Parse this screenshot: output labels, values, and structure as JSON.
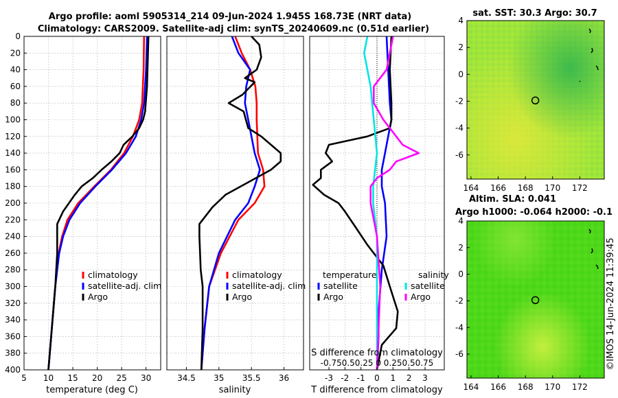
{
  "header": {
    "title_line1": "Argo profile: aoml 5905314_214 09-Jun-2024 1.945S 168.73E (NRT data)",
    "title_line2": "Climatology: CARS2009. Satellite-adj clim: synTS_20240609.nc (0.51d earlier)"
  },
  "copyright": "©IMOS 14-Jun-2024 11:39:45",
  "colors": {
    "climatology": "#ff0000",
    "satellite": "#0000ff",
    "argo": "#000000",
    "sat_diff_T": "#00e5e5",
    "argo_diff_S": "#ff00ff"
  },
  "chart_data": [
    {
      "type": "line",
      "id": "temperature",
      "xlabel": "temperature (deg C)",
      "ylabel": "",
      "xlim": [
        5,
        33
      ],
      "ylim": [
        400,
        0
      ],
      "xticks": [
        "5",
        "10",
        "15",
        "20",
        "25",
        "30"
      ],
      "yticks": [
        "0",
        "20",
        "40",
        "60",
        "80",
        "100",
        "120",
        "140",
        "160",
        "180",
        "200",
        "220",
        "240",
        "260",
        "280",
        "300",
        "320",
        "340",
        "360",
        "380",
        "400"
      ],
      "legend": [
        "climatology",
        "satellite-adj. clim",
        "Argo"
      ],
      "series": [
        {
          "name": "climatology",
          "color": "#ff0000",
          "depth": [
            0,
            40,
            80,
            100,
            120,
            140,
            160,
            180,
            200,
            220,
            240,
            260,
            300,
            350,
            400
          ],
          "values": [
            29.6,
            29.5,
            29.2,
            28.6,
            27.3,
            25.5,
            22.8,
            19.4,
            16.1,
            13.9,
            12.8,
            12.1,
            11.4,
            10.7,
            10.0
          ]
        },
        {
          "name": "satellite-adj. clim",
          "color": "#0000ff",
          "depth": [
            0,
            40,
            80,
            100,
            120,
            140,
            160,
            180,
            200,
            220,
            240,
            260,
            300,
            350,
            400
          ],
          "values": [
            30.2,
            30.0,
            29.6,
            29.0,
            27.9,
            25.9,
            23.0,
            19.6,
            16.5,
            14.3,
            13.0,
            12.2,
            11.4,
            10.7,
            10.0
          ]
        },
        {
          "name": "Argo",
          "color": "#000000",
          "depth": [
            0,
            20,
            60,
            90,
            100,
            110,
            120,
            130,
            140,
            150,
            160,
            170,
            180,
            190,
            200,
            210,
            220,
            225,
            240,
            260,
            300,
            350,
            400
          ],
          "values": [
            30.5,
            30.4,
            30.2,
            29.8,
            29.4,
            28.6,
            27.2,
            25.4,
            24.6,
            22.9,
            20.9,
            19.1,
            16.8,
            15.4,
            14.2,
            13.0,
            12.2,
            11.8,
            11.8,
            11.8,
            11.4,
            10.7,
            10.0
          ]
        }
      ]
    },
    {
      "type": "line",
      "id": "salinity",
      "xlabel": "salinity",
      "xlim": [
        34.2,
        36.3
      ],
      "ylim": [
        400,
        0
      ],
      "xticks": [
        "34.5",
        "35",
        "35.5",
        "36"
      ],
      "legend": [
        "climatology",
        "satellite-adj. clim",
        "Argo"
      ],
      "series": [
        {
          "name": "climatology",
          "color": "#ff0000",
          "depth": [
            0,
            20,
            40,
            60,
            80,
            100,
            140,
            160,
            180,
            200,
            220,
            260,
            300,
            350,
            400
          ],
          "values": [
            35.25,
            35.35,
            35.48,
            35.56,
            35.58,
            35.58,
            35.6,
            35.68,
            35.7,
            35.55,
            35.3,
            35.03,
            34.85,
            34.78,
            34.73
          ]
        },
        {
          "name": "satellite-adj. clim",
          "color": "#0000ff",
          "depth": [
            0,
            20,
            40,
            60,
            80,
            100,
            140,
            160,
            180,
            200,
            220,
            260,
            300,
            350,
            400
          ],
          "values": [
            35.2,
            35.3,
            35.48,
            35.42,
            35.4,
            35.45,
            35.55,
            35.63,
            35.55,
            35.45,
            35.25,
            35.0,
            34.85,
            34.78,
            34.73
          ]
        },
        {
          "name": "Argo",
          "color": "#000000",
          "depth": [
            0,
            10,
            25,
            40,
            50,
            55,
            70,
            80,
            90,
            110,
            120,
            140,
            150,
            160,
            175,
            190,
            205,
            225,
            240,
            280,
            300,
            350,
            400
          ],
          "values": [
            35.5,
            35.62,
            35.65,
            35.58,
            35.4,
            35.55,
            35.36,
            35.15,
            35.38,
            35.45,
            35.65,
            35.95,
            35.95,
            35.8,
            35.45,
            35.1,
            34.9,
            34.7,
            34.7,
            34.72,
            34.75,
            34.75,
            34.73
          ]
        }
      ]
    },
    {
      "type": "line",
      "id": "difference",
      "xlabel": "T difference from climatology",
      "secondary_xlabel": "S difference from climatology",
      "xlim": [
        -4.2,
        4.2
      ],
      "ylim": [
        400,
        0
      ],
      "xticks": [
        "-3",
        "-2",
        "-1",
        "0",
        "1",
        "2",
        "3"
      ],
      "secondary_xticks": "-0.750.50.25 0 0.250.50.75",
      "legend_temperature": {
        "title": "temperature",
        "items": [
          "satellite",
          "Argo"
        ]
      },
      "legend_salinity": {
        "title": "salinity",
        "items": [
          "satellite",
          "Argo"
        ]
      },
      "series": [
        {
          "name": "satellite T diff",
          "color": "#0000ff",
          "depth": [
            0,
            40,
            80,
            100,
            120,
            140,
            160,
            180,
            200,
            240,
            280,
            330,
            360,
            400
          ],
          "values": [
            0.6,
            0.7,
            0.8,
            0.9,
            0.7,
            0.5,
            0.3,
            0.3,
            0.5,
            0.6,
            0.3,
            0.1,
            0.1,
            0.0
          ]
        },
        {
          "name": "Argo T diff",
          "color": "#000000",
          "depth": [
            0,
            40,
            80,
            100,
            110,
            120,
            130,
            140,
            150,
            160,
            170,
            178,
            190,
            200,
            210,
            230,
            250,
            275,
            300,
            330,
            350,
            370,
            400
          ],
          "values": [
            0.9,
            0.8,
            0.9,
            0.9,
            0.8,
            -0.6,
            -3.0,
            -3.2,
            -2.8,
            -3.5,
            -3.5,
            -4.0,
            -3.3,
            -2.4,
            -2.0,
            -1.3,
            -0.6,
            0.4,
            0.8,
            1.3,
            1.2,
            0.3,
            0.0
          ]
        },
        {
          "name": "satellite S diff",
          "color": "#00e5e5",
          "depth": [
            0,
            20,
            60,
            100,
            140,
            160,
            180,
            200,
            240,
            300,
            400
          ],
          "values": [
            -0.15,
            -0.2,
            -0.1,
            -0.05,
            0.0,
            -0.03,
            -0.06,
            -0.06,
            0.0,
            0.0,
            0.0
          ]
        },
        {
          "name": "Argo S diff",
          "color": "#ff00ff",
          "depth": [
            0,
            20,
            40,
            60,
            80,
            100,
            120,
            130,
            140,
            150,
            160,
            170,
            180,
            200,
            240,
            300,
            400
          ],
          "values": [
            0.25,
            0.2,
            0.15,
            -0.05,
            -0.05,
            0.1,
            0.3,
            0.4,
            0.65,
            0.3,
            0.2,
            0.0,
            -0.1,
            -0.1,
            0.0,
            0.05,
            0.0
          ]
        }
      ]
    }
  ],
  "maps": [
    {
      "id": "sst-map",
      "title": "sat. SST: 30.3 Argo: 30.7",
      "xticks": [
        "164",
        "166",
        "168",
        "170",
        "172"
      ],
      "yticks": [
        "4",
        "2",
        "0",
        "-2",
        "-4",
        "-6"
      ],
      "marker": {
        "lon": 168.73,
        "lat": -1.945
      }
    },
    {
      "id": "sla-map",
      "title_line1": "Altim. SLA: 0.041",
      "title_line2": "Argo h1000: -0.064 h2000: -0.1",
      "xticks": [
        "164",
        "166",
        "168",
        "170",
        "172"
      ],
      "yticks": [
        "4",
        "2",
        "0",
        "-2",
        "-4",
        "-6"
      ],
      "marker": {
        "lon": 168.73,
        "lat": -1.945
      }
    }
  ]
}
